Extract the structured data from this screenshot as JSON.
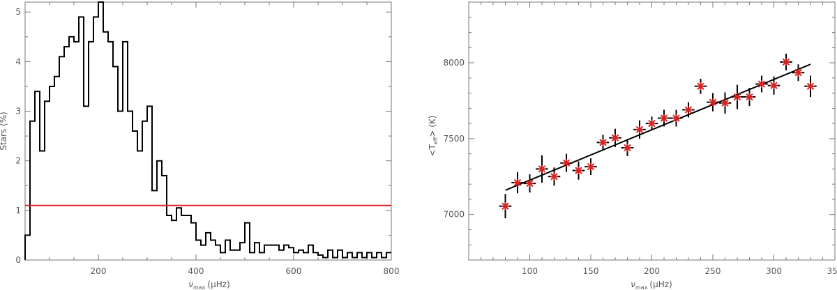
{
  "chart_data": [
    {
      "type": "histogram",
      "xlabel_symbol": "ν",
      "xlabel_sub": "max",
      "xlabel_unit": "(μHz)",
      "ylabel": "Stars (%)",
      "xlim": [
        50,
        800
      ],
      "ylim": [
        0,
        5.2
      ],
      "xticks": [
        200,
        400,
        600,
        800
      ],
      "yticks": [
        0,
        1,
        2,
        3,
        4,
        5
      ],
      "tick_labels_x": [
        "200",
        "400",
        "600",
        "800"
      ],
      "tick_labels_y": [
        "0",
        "1",
        "2",
        "3",
        "4",
        "5"
      ],
      "bin_width": 10,
      "bins_start": [
        50,
        60,
        70,
        80,
        90,
        100,
        110,
        120,
        130,
        140,
        150,
        160,
        170,
        180,
        190,
        200,
        210,
        220,
        230,
        240,
        250,
        260,
        270,
        280,
        290,
        300,
        310,
        320,
        330,
        340,
        350,
        360,
        370,
        380,
        390,
        400,
        410,
        420,
        430,
        440,
        450,
        460,
        470,
        480,
        490,
        500,
        510,
        520,
        530,
        540,
        550,
        560,
        570,
        580,
        590,
        600,
        610,
        620,
        630,
        640,
        650,
        660,
        670,
        680,
        690,
        700,
        710,
        720,
        730,
        740,
        750,
        760,
        770,
        780,
        790
      ],
      "values": [
        0.5,
        2.8,
        3.4,
        2.2,
        3.2,
        3.5,
        3.7,
        4.1,
        4.3,
        4.5,
        4.4,
        4.9,
        3.1,
        4.4,
        4.9,
        5.2,
        4.6,
        4.4,
        3.9,
        3.0,
        4.4,
        3.0,
        2.6,
        2.2,
        2.8,
        3.1,
        1.4,
        2.0,
        1.7,
        0.9,
        0.8,
        1.05,
        0.9,
        0.9,
        0.75,
        0.4,
        0.3,
        0.55,
        0.4,
        0.3,
        0.15,
        0.4,
        0.2,
        0.2,
        0.35,
        0.75,
        0.15,
        0.35,
        0.15,
        0.3,
        0.3,
        0.3,
        0.2,
        0.3,
        0.25,
        0.15,
        0.2,
        0.15,
        0.3,
        0.15,
        0.1,
        0.05,
        0.2,
        0.05,
        0.2,
        0.05,
        0.15,
        0.05,
        0.15,
        0.05,
        0.15,
        0.05,
        0.15,
        0.05,
        0.15
      ],
      "threshold_line": {
        "y": 1.1,
        "color": "#e02020"
      },
      "line_color": "#000000"
    },
    {
      "type": "scatter",
      "xlabel_symbol": "ν",
      "xlabel_sub": "max",
      "xlabel_unit": "(μHz)",
      "ylabel_prefix": "<T",
      "ylabel_sub": "eff",
      "ylabel_suffix": "> (K)",
      "xlim": [
        50,
        350
      ],
      "ylim": [
        6700,
        8400
      ],
      "xticks": [
        100,
        150,
        200,
        250,
        300,
        350
      ],
      "yticks": [
        7000,
        7500,
        8000
      ],
      "tick_labels_x": [
        "100",
        "150",
        "200",
        "250",
        "300",
        "350"
      ],
      "tick_labels_y": [
        "7000",
        "7500",
        "8000"
      ],
      "x": [
        80,
        90,
        100,
        110,
        120,
        130,
        140,
        150,
        160,
        170,
        180,
        190,
        200,
        210,
        220,
        230,
        240,
        250,
        260,
        270,
        280,
        290,
        300,
        310,
        320,
        330
      ],
      "y": [
        7055,
        7210,
        7205,
        7300,
        7250,
        7340,
        7290,
        7315,
        7475,
        7505,
        7440,
        7560,
        7600,
        7635,
        7635,
        7690,
        7845,
        7740,
        7735,
        7775,
        7775,
        7860,
        7850,
        8005,
        7935,
        7845
      ],
      "yerr": [
        80,
        70,
        60,
        90,
        60,
        60,
        60,
        55,
        50,
        60,
        55,
        60,
        45,
        55,
        55,
        50,
        50,
        60,
        70,
        80,
        60,
        55,
        60,
        55,
        55,
        70
      ],
      "xerr": 5,
      "marker_color": "#e02020",
      "errorbar_color": "#000000",
      "fit_line": {
        "x": [
          80,
          330
        ],
        "y": [
          7160,
          7990
        ],
        "color": "#000000"
      }
    }
  ]
}
